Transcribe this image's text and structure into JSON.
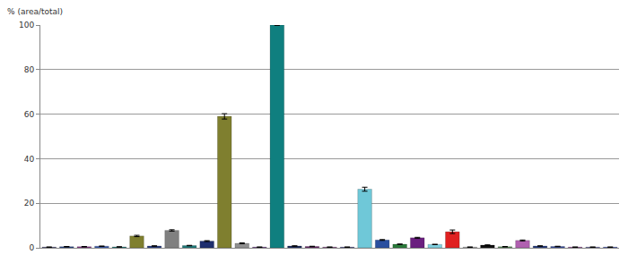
{
  "chart_data": {
    "type": "bar",
    "y_label": "% (area/total)",
    "categories": [
      null,
      null,
      null,
      null,
      null,
      null,
      null,
      null,
      null,
      null,
      null,
      null,
      null,
      null,
      null,
      null,
      null,
      null,
      null,
      null,
      null,
      null,
      null,
      null,
      null,
      null,
      null,
      null,
      null,
      null,
      null,
      null,
      null
    ],
    "values": [
      0.3,
      0.5,
      0.5,
      0.7,
      0.4,
      5.3,
      0.8,
      7.8,
      1.0,
      3.0,
      59.0,
      2.0,
      0.3,
      100.0,
      0.8,
      0.6,
      0.3,
      0.3,
      26.3,
      3.5,
      1.6,
      4.5,
      1.5,
      7.2,
      0.3,
      1.2,
      0.5,
      3.3,
      0.8,
      0.6,
      0.3,
      0.3,
      0.3
    ],
    "errors": [
      0.1,
      0.1,
      0.1,
      0.1,
      0.1,
      0.3,
      0.1,
      0.3,
      0.1,
      0.2,
      1.2,
      0.2,
      0.1,
      0.2,
      0.1,
      0.1,
      0.1,
      0.1,
      0.9,
      0.2,
      0.1,
      0.2,
      0.1,
      0.8,
      0.1,
      0.1,
      0.1,
      0.2,
      0.1,
      0.1,
      0.1,
      0.1,
      0.1
    ],
    "colors": [
      "#3a3a6a",
      "#2b4a8a",
      "#8a3a8a",
      "#3a5aaa",
      "#2a7a7a",
      "#7f7f2f",
      "#2b3f7f",
      "#808080",
      "#1f7a7a",
      "#1f2f6f",
      "#7f7f2f",
      "#909090",
      "#5a2a7a",
      "#0f7f7f",
      "#1f2f5f",
      "#6a2a6a",
      "#7a3a7a",
      "#3a3a7a",
      "#6fc8d8",
      "#2a4f9f",
      "#2a7a3a",
      "#6a1f7f",
      "#80d0e0",
      "#e02020",
      "#a0a0a0",
      "#101010",
      "#5a8a5a",
      "#b060b0",
      "#2a3f7f",
      "#3a4f9f",
      "#8a3a8a",
      "#5a5a9a",
      "#3a4aaa"
    ],
    "ylim": [
      0,
      100
    ],
    "yticks": [
      0,
      20,
      40,
      60,
      80,
      100
    ],
    "grid": true,
    "tick_labels": "y"
  }
}
